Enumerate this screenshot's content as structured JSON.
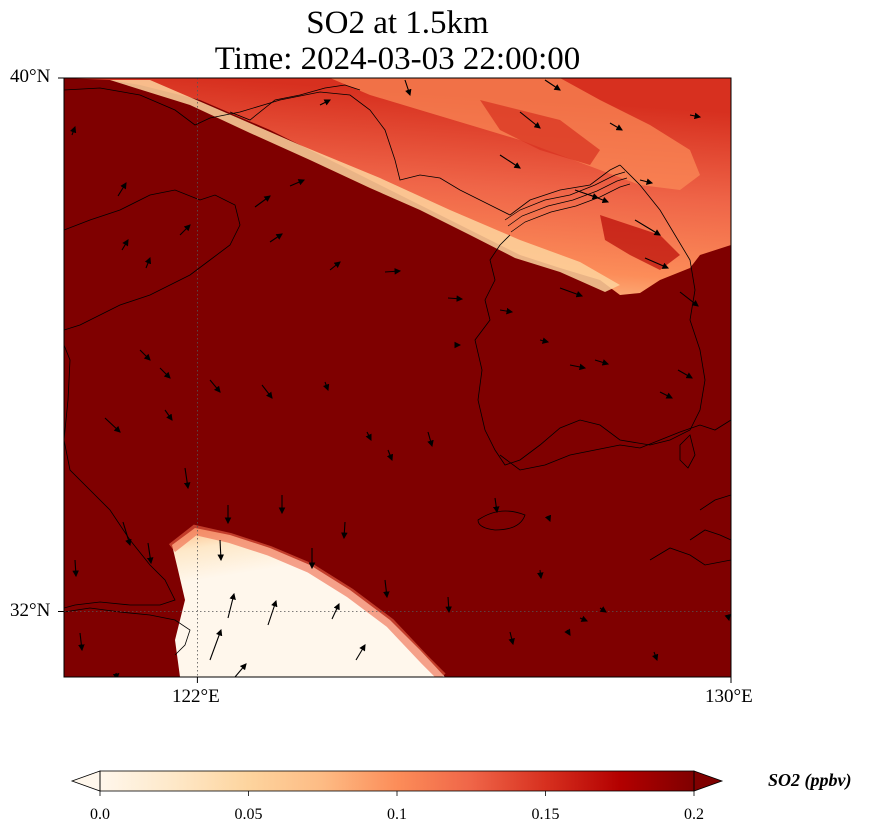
{
  "title": {
    "line1": "SO2 at 1.5km",
    "line2": "Time: 2024-03-03 22:00:00"
  },
  "axes": {
    "lat_ticks": [
      "40°N",
      "32°N"
    ],
    "lon_ticks": [
      "122°E",
      "130°E"
    ]
  },
  "colorbar": {
    "label": "SO2 (ppbv)",
    "ticks": [
      "0.0",
      "0.05",
      "0.1",
      "0.15",
      "0.2"
    ],
    "colormap": "OrRd",
    "min": 0.0,
    "max": 0.2,
    "extend": "both",
    "colors": [
      "#fff7ec",
      "#fee8c8",
      "#fdd49e",
      "#fdbb84",
      "#fc8d59",
      "#ef6548",
      "#d7301f",
      "#b30000",
      "#7f0000"
    ]
  },
  "map": {
    "background_value_color": "#7f0000",
    "coastline_color": "#000000",
    "gridline_style": "dotted",
    "field": "SO2 concentration",
    "level": "1.5km",
    "wind_vectors": "shown"
  }
}
